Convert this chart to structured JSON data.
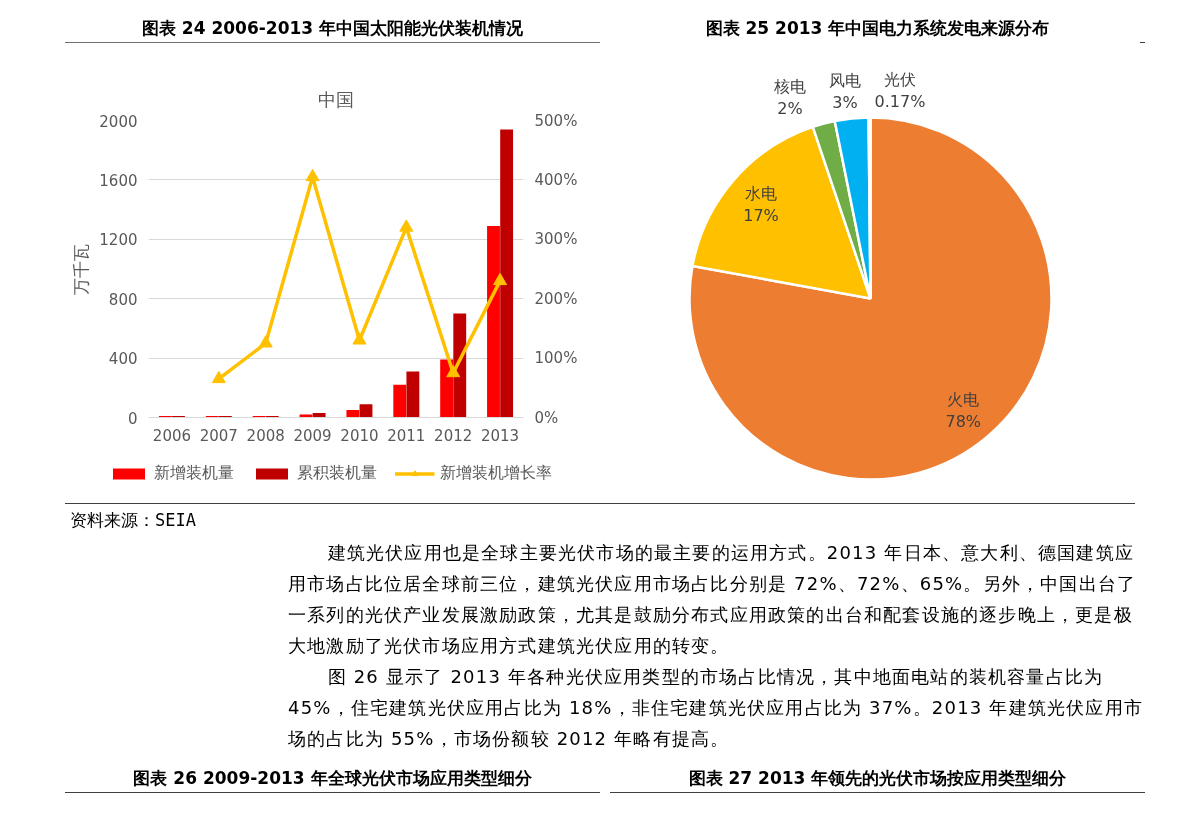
{
  "chart_data": [
    {
      "type": "bar",
      "title": "图表 24 2006-2013 年中国太阳能光伏装机情况",
      "subtitle": "中国",
      "ylabel": "万千瓦",
      "categories": [
        "2006",
        "2007",
        "2008",
        "2009",
        "2010",
        "2011",
        "2012",
        "2013"
      ],
      "series": [
        {
          "name": "新增装机量",
          "color": "#ff0000",
          "values": [
            10,
            10,
            10,
            20,
            50,
            220,
            390,
            1290
          ]
        },
        {
          "name": "累积装机量",
          "color": "#c00000",
          "values": [
            10,
            10,
            10,
            30,
            90,
            310,
            700,
            1940
          ]
        },
        {
          "name": "新增装机增长率",
          "type": "line",
          "axis": "y2",
          "marker": "triangle",
          "color": "#ffc000",
          "values": [
            null,
            65,
            125,
            405,
            130,
            320,
            75,
            230
          ]
        }
      ],
      "ylim": [
        0,
        2000
      ],
      "yticks": [
        0,
        400,
        800,
        1200,
        1600,
        2000
      ],
      "y2lim": [
        0,
        500
      ],
      "y2ticks": [
        {
          "value": 0,
          "label": "0%"
        },
        {
          "value": 100,
          "label": "100%"
        },
        {
          "value": 200,
          "label": "200%"
        },
        {
          "value": 300,
          "label": "300%"
        },
        {
          "value": 400,
          "label": "400%"
        },
        {
          "value": 500,
          "label": "500%"
        }
      ],
      "grid": "y",
      "legend": "bottom",
      "annotations": [
        "资料来源：SEIA"
      ]
    },
    {
      "type": "pie",
      "title": "图表 25 2013 年中国电力系统发电来源分布",
      "categories": [
        "火电",
        "水电",
        "核电",
        "风电",
        "光伏"
      ],
      "values": [
        78,
        17,
        2,
        3,
        0.17
      ],
      "colors": [
        "#ed7d31",
        "#ffc000",
        "#70ad47",
        "#00b0f0",
        "#7f7f7f"
      ],
      "value_labels": [
        "78%",
        "17%",
        "2%",
        "3%",
        "0.17%"
      ]
    },
    {
      "type": "other",
      "annotations": [
        "建筑光伏应用也是全球主要光伏市场的最主要的运用方式。2013 年日本、意大利、德国建筑应用市场占比位居全球前三位，建筑光伏应用市场占比分别是 72%、72%、65%。另外，中国出台了一系列的光伏产业发展激励政策，尤其是鼓励分布式应用政策的出台和配套设施的逐步晚上，更是极大地激励了光伏市场应用方式建筑光伏应用的转变。",
        "图 26 显示了 2013 年各种光伏应用类型的市场占比情况，其中地面电站的装机容量占比为 45%，住宅建筑光伏应用占比为 18%，非住宅建筑光伏应用占比为 37%。2013 年建筑光伏应用市场的占比为 55%，市场份额较 2012 年略有提高。"
      ]
    },
    {
      "type": "other",
      "title": "图表 26 2009-2013 年全球光伏市场应用类型细分"
    },
    {
      "type": "other",
      "title": "图表 27 2013 年领先的光伏市场按应用类型细分"
    }
  ]
}
